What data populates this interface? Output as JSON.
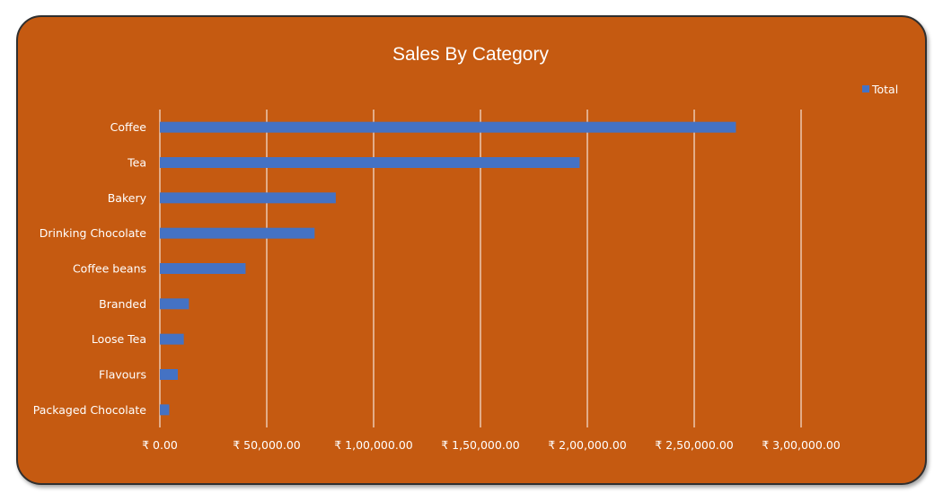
{
  "chart_data": {
    "type": "bar",
    "orientation": "horizontal",
    "title": "Sales By Category",
    "categories": [
      "Coffee",
      "Tea",
      "Bakery",
      "Drinking Chocolate",
      "Coffee beans",
      "Branded",
      "Loose Tea",
      "Flavours",
      "Packaged Chocolate"
    ],
    "series": [
      {
        "name": "Total",
        "color": "#4472C4",
        "values": [
          269500,
          196400,
          82300,
          72400,
          40100,
          13600,
          11200,
          8400,
          4400
        ]
      }
    ],
    "xlim": [
      0,
      300000
    ],
    "xticks": [
      0,
      50000,
      100000,
      150000,
      200000,
      250000,
      300000
    ],
    "xtick_labels": [
      "₹ 0.00",
      "₹ 50,000.00",
      "₹ 1,00,000.00",
      "₹ 1,50,000.00",
      "₹ 2,00,000.00",
      "₹ 2,50,000.00",
      "₹ 3,00,000.00"
    ],
    "grid": "vertical",
    "legend": "top-right",
    "background_color": "#C55A11",
    "gridline_color": "#ffffff"
  }
}
